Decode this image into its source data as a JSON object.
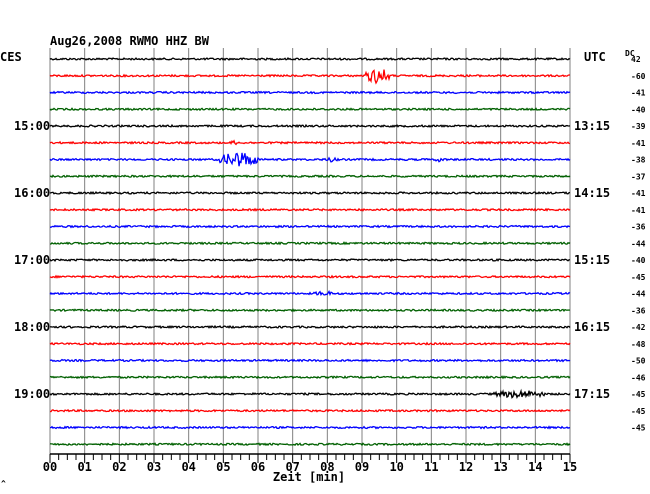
{
  "header": {
    "title": "Aug26,2008   RWMO HHZ BW",
    "left_zone": "CES",
    "right_zone": "UTC",
    "dc_label": "DC"
  },
  "footer": {
    "xlabel": "Zeit [min]",
    "corner_mark": "^"
  },
  "colors": {
    "trace_cycle": [
      "#000000",
      "#ff0000",
      "#0000ff",
      "#006000"
    ],
    "grid": "#808080",
    "text": "#000000"
  },
  "chart_data": {
    "type": "line",
    "title": "Aug26,2008   RWMO HHZ BW",
    "xlabel": "Zeit [min]",
    "xlim": [
      0,
      15
    ],
    "x_ticks": [
      "00",
      "01",
      "02",
      "03",
      "04",
      "05",
      "06",
      "07",
      "08",
      "09",
      "10",
      "11",
      "12",
      "13",
      "14",
      "15"
    ],
    "minor_ticks_per_minute": 4,
    "trace_count": 24,
    "trace_duration_min": 15,
    "left_hour_labels": [
      {
        "trace": 4,
        "label": "15:00"
      },
      {
        "trace": 8,
        "label": "16:00"
      },
      {
        "trace": 12,
        "label": "17:00"
      },
      {
        "trace": 16,
        "label": "18:00"
      },
      {
        "trace": 20,
        "label": "19:00"
      }
    ],
    "right_hour_labels": [
      {
        "trace": 4,
        "label": "13:15"
      },
      {
        "trace": 8,
        "label": "14:15"
      },
      {
        "trace": 12,
        "label": "15:15"
      },
      {
        "trace": 16,
        "label": "16:15"
      },
      {
        "trace": 20,
        "label": "17:15"
      }
    ],
    "dc_offsets": [
      "42",
      "-60",
      "-41",
      "-40",
      "-39",
      "-41",
      "-38",
      "-37",
      "-41",
      "-41",
      "-36",
      "-44",
      "-40",
      "-45",
      "-44",
      "-36",
      "-42",
      "-48",
      "-50",
      "-46",
      "-45",
      "-45",
      "-45"
    ],
    "events": [
      {
        "trace": 1,
        "start_min": 9.1,
        "end_min": 9.8,
        "amplitude": "large"
      },
      {
        "trace": 5,
        "start_min": 5.2,
        "end_min": 5.4,
        "amplitude": "small"
      },
      {
        "trace": 6,
        "start_min": 4.9,
        "end_min": 6.0,
        "amplitude": "large"
      },
      {
        "trace": 6,
        "start_min": 7.9,
        "end_min": 8.3,
        "amplitude": "small"
      },
      {
        "trace": 6,
        "start_min": 11.1,
        "end_min": 11.4,
        "amplitude": "small"
      },
      {
        "trace": 14,
        "start_min": 7.6,
        "end_min": 8.2,
        "amplitude": "small"
      },
      {
        "trace": 20,
        "start_min": 12.8,
        "end_min": 14.3,
        "amplitude": "medium"
      }
    ]
  }
}
